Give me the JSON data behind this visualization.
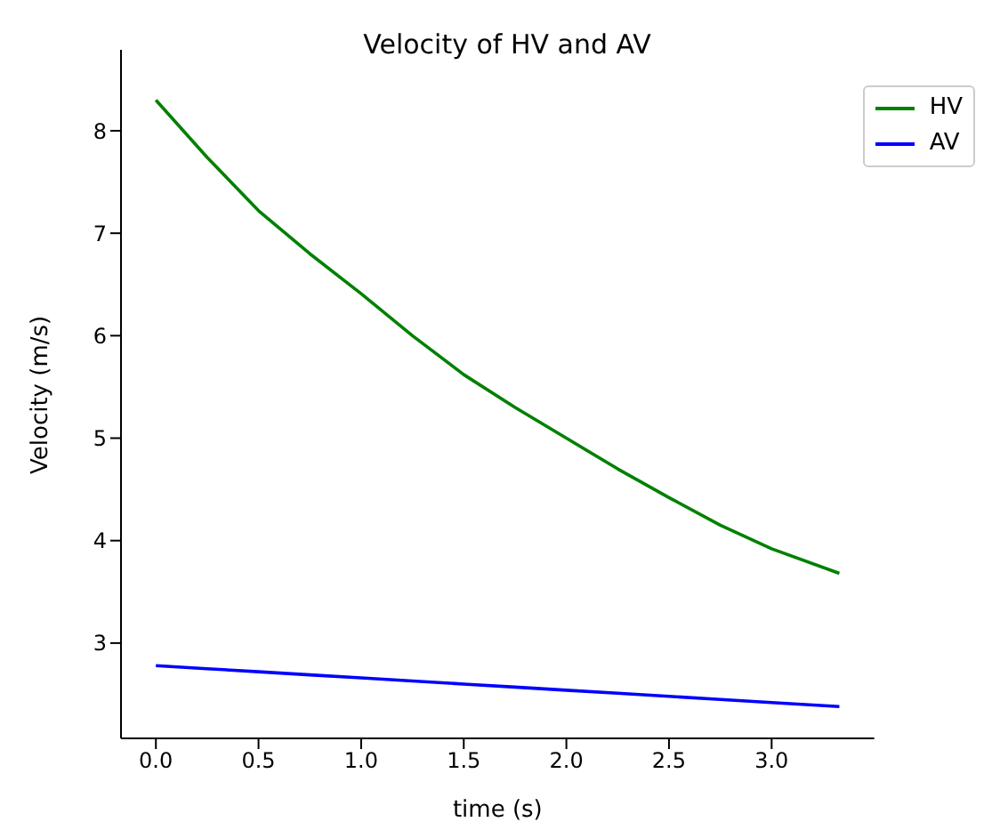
{
  "chart_data": {
    "type": "line",
    "title": "Velocity of HV and AV",
    "xlabel": "time (s)",
    "ylabel": "Velocity (m/s)",
    "x": [
      0,
      0.25,
      0.5,
      0.75,
      1.0,
      1.25,
      1.5,
      1.75,
      2.0,
      2.25,
      2.5,
      2.75,
      3.0,
      3.33
    ],
    "series": [
      {
        "name": "HV",
        "color": "#008000",
        "values": [
          8.3,
          7.74,
          7.22,
          6.8,
          6.41,
          6.0,
          5.62,
          5.3,
          5.0,
          4.7,
          4.42,
          4.15,
          3.92,
          3.68
        ]
      },
      {
        "name": "AV",
        "color": "#0000ff",
        "values": [
          2.78,
          2.75,
          2.72,
          2.69,
          2.66,
          2.63,
          2.6,
          2.57,
          2.54,
          2.51,
          2.48,
          2.45,
          2.42,
          2.38
        ]
      }
    ],
    "xlim": [
      -0.17,
      3.5
    ],
    "xticks": [
      {
        "value": 0,
        "label": "0.0"
      },
      0.5,
      {
        "value": 1,
        "label": "1.0"
      },
      1.5,
      {
        "value": 2,
        "label": "2.0"
      },
      2.5,
      {
        "value": 3,
        "label": "3.0"
      }
    ],
    "ylim": [
      2.07,
      8.79
    ],
    "yticks": [
      3,
      4,
      5,
      6,
      7,
      8
    ],
    "legend": "top right",
    "marker": "none",
    "line_style": "solid"
  }
}
